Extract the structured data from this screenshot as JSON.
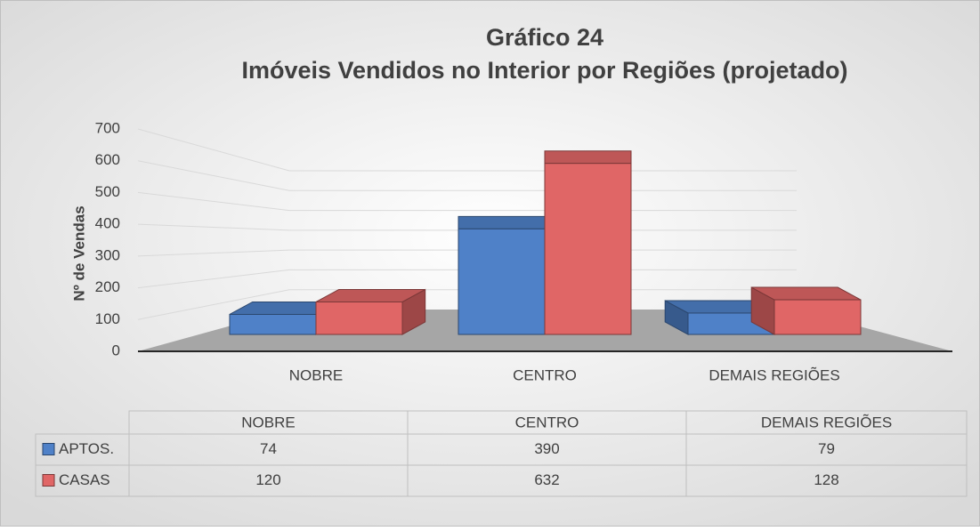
{
  "chart_data": {
    "type": "bar3d",
    "title": "Gráfico 24",
    "subtitle": "Imóveis Vendidos no Interior por Regiões (projetado)",
    "y_label": "Nº de Vendas",
    "categories": [
      "NOBRE",
      "CENTRO",
      "DEMAIS REGIÕES"
    ],
    "series": [
      {
        "name": "APTOS.",
        "color": "#4f81c8",
        "values": [
          74,
          390,
          79
        ]
      },
      {
        "name": "CASAS",
        "color": "#e06666",
        "values": [
          120,
          632,
          128
        ]
      }
    ],
    "ylim": [
      0,
      700
    ],
    "yticks": [
      0,
      100,
      200,
      300,
      400,
      500,
      600,
      700
    ],
    "grid": true
  }
}
